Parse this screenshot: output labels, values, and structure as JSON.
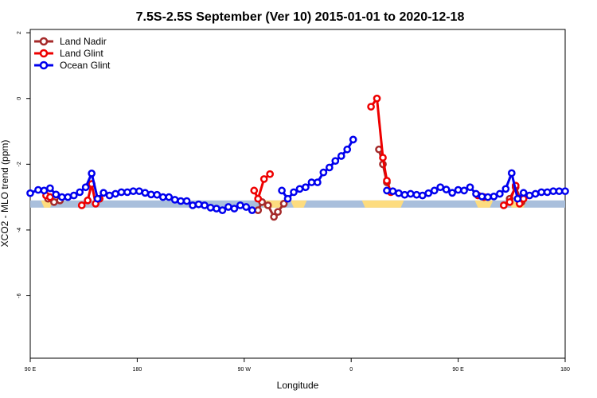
{
  "chart_data": {
    "type": "line",
    "title": "7.5S-2.5S September (Ver 10)   2015-01-01 to 2020-12-18",
    "xlabel": "Longitude",
    "ylabel": "XCO2 - MLO trend (ppm)",
    "xlim": [
      -90,
      180
    ],
    "ylim": [
      -7.9,
      2.1
    ],
    "x_ticks": [
      {
        "value": -90,
        "label": "90 E"
      },
      {
        "value": -36,
        "label": "180"
      },
      {
        "value": 18,
        "label": "90 W"
      },
      {
        "value": 72,
        "label": "0"
      },
      {
        "value": 126,
        "label": "90 E"
      },
      {
        "value": 180,
        "label": "180"
      }
    ],
    "y_ticks": [
      {
        "value": 2,
        "label": "2"
      },
      {
        "value": 0,
        "label": "0"
      },
      {
        "value": -2,
        "label": "-2"
      },
      {
        "value": -4,
        "label": "-4"
      },
      {
        "value": -6,
        "label": "-6"
      }
    ],
    "legend_position": "top-left",
    "band": {
      "y_range": [
        -3.32,
        -3.1
      ],
      "ocean_color": "#a9bfdc",
      "land_color": "#fddc7f",
      "land_segments": [
        [
          -83,
          -80
        ],
        [
          28,
          38
        ],
        [
          43,
          48
        ],
        [
          79,
          97
        ],
        [
          136,
          142
        ],
        [
          153,
          159
        ]
      ]
    },
    "series": [
      {
        "name": "Land Nadir",
        "color": "#a52a2a",
        "segments": [
          [
            [
              -81,
              -3.05
            ],
            [
              -78,
              -3.15
            ],
            [
              -75,
              -3.1
            ]
          ],
          [
            [
              25,
              -3.4
            ],
            [
              27,
              -3.15
            ],
            [
              30,
              -3.25
            ],
            [
              33,
              -3.6
            ],
            [
              35,
              -3.45
            ],
            [
              38,
              -3.2
            ]
          ],
          [
            [
              86,
              -1.55
            ],
            [
              88,
              -2.0
            ],
            [
              90,
              -2.55
            ]
          ],
          [
            [
              152,
              -3.05
            ],
            [
              155,
              -2.7
            ],
            [
              158,
              -3.15
            ]
          ]
        ]
      },
      {
        "name": "Land Glint",
        "color": "#ee0000",
        "segments": [
          [
            [
              -82,
              -2.95
            ],
            [
              -80,
              -3.0
            ]
          ],
          [
            [
              -64,
              -3.25
            ],
            [
              -61,
              -3.1
            ],
            [
              -59,
              -2.6
            ],
            [
              -57,
              -3.2
            ],
            [
              -55,
              -3.05
            ]
          ],
          [
            [
              23,
              -2.8
            ],
            [
              25,
              -3.05
            ],
            [
              28,
              -2.45
            ],
            [
              31,
              -2.3
            ]
          ],
          [
            [
              82,
              -0.25
            ],
            [
              85,
              0.0
            ],
            [
              88,
              -1.8
            ],
            [
              90,
              -2.5
            ],
            [
              92,
              -2.85
            ]
          ],
          [
            [
              136,
              -2.95
            ],
            [
              139,
              -3.0
            ]
          ],
          [
            [
              149,
              -3.25
            ],
            [
              152,
              -3.15
            ],
            [
              155,
              -2.65
            ],
            [
              157,
              -3.2
            ],
            [
              159,
              -3.05
            ]
          ]
        ]
      },
      {
        "name": "Ocean Glint",
        "color": "#0000ee",
        "segments": [
          [
            [
              -90,
              -2.88
            ],
            [
              -86,
              -2.78
            ],
            [
              -83,
              -2.8
            ],
            [
              -80,
              -2.73
            ],
            [
              -77,
              -2.92
            ],
            [
              -74,
              -3.0
            ],
            [
              -71,
              -3.0
            ],
            [
              -68,
              -2.95
            ],
            [
              -65,
              -2.85
            ],
            [
              -62,
              -2.7
            ],
            [
              -59,
              -2.28
            ],
            [
              -56,
              -3.05
            ],
            [
              -53,
              -2.87
            ],
            [
              -50,
              -2.95
            ],
            [
              -47,
              -2.9
            ],
            [
              -44,
              -2.85
            ],
            [
              -41,
              -2.85
            ],
            [
              -38,
              -2.82
            ],
            [
              -35,
              -2.82
            ],
            [
              -32,
              -2.87
            ],
            [
              -29,
              -2.92
            ],
            [
              -26,
              -2.93
            ],
            [
              -23,
              -3.0
            ],
            [
              -20,
              -3.0
            ],
            [
              -17,
              -3.08
            ],
            [
              -14,
              -3.12
            ],
            [
              -11,
              -3.12
            ],
            [
              -8,
              -3.25
            ],
            [
              -5,
              -3.22
            ],
            [
              -2,
              -3.25
            ],
            [
              1,
              -3.32
            ],
            [
              4,
              -3.35
            ],
            [
              7,
              -3.4
            ],
            [
              10,
              -3.3
            ],
            [
              13,
              -3.35
            ],
            [
              16,
              -3.25
            ],
            [
              19,
              -3.3
            ],
            [
              22,
              -3.4
            ]
          ],
          [
            [
              37,
              -2.8
            ],
            [
              40,
              -3.05
            ],
            [
              43,
              -2.85
            ],
            [
              46,
              -2.75
            ],
            [
              49,
              -2.7
            ],
            [
              52,
              -2.55
            ],
            [
              55,
              -2.55
            ],
            [
              58,
              -2.25
            ],
            [
              61,
              -2.1
            ],
            [
              64,
              -1.9
            ],
            [
              67,
              -1.75
            ],
            [
              70,
              -1.55
            ],
            [
              73,
              -1.25
            ]
          ],
          [
            [
              90,
              -2.8
            ],
            [
              93,
              -2.82
            ],
            [
              96,
              -2.88
            ],
            [
              99,
              -2.93
            ],
            [
              102,
              -2.9
            ],
            [
              105,
              -2.93
            ],
            [
              108,
              -2.95
            ],
            [
              111,
              -2.88
            ],
            [
              114,
              -2.8
            ],
            [
              117,
              -2.7
            ],
            [
              120,
              -2.77
            ],
            [
              123,
              -2.87
            ],
            [
              126,
              -2.78
            ],
            [
              129,
              -2.8
            ],
            [
              132,
              -2.7
            ],
            [
              135,
              -2.9
            ],
            [
              138,
              -2.98
            ],
            [
              141,
              -3.0
            ],
            [
              144,
              -2.98
            ],
            [
              147,
              -2.9
            ],
            [
              150,
              -2.75
            ],
            [
              153,
              -2.27
            ],
            [
              156,
              -3.05
            ],
            [
              159,
              -2.87
            ],
            [
              162,
              -2.95
            ],
            [
              165,
              -2.9
            ],
            [
              168,
              -2.85
            ],
            [
              171,
              -2.85
            ],
            [
              174,
              -2.82
            ],
            [
              177,
              -2.82
            ],
            [
              180,
              -2.82
            ]
          ]
        ]
      }
    ]
  }
}
